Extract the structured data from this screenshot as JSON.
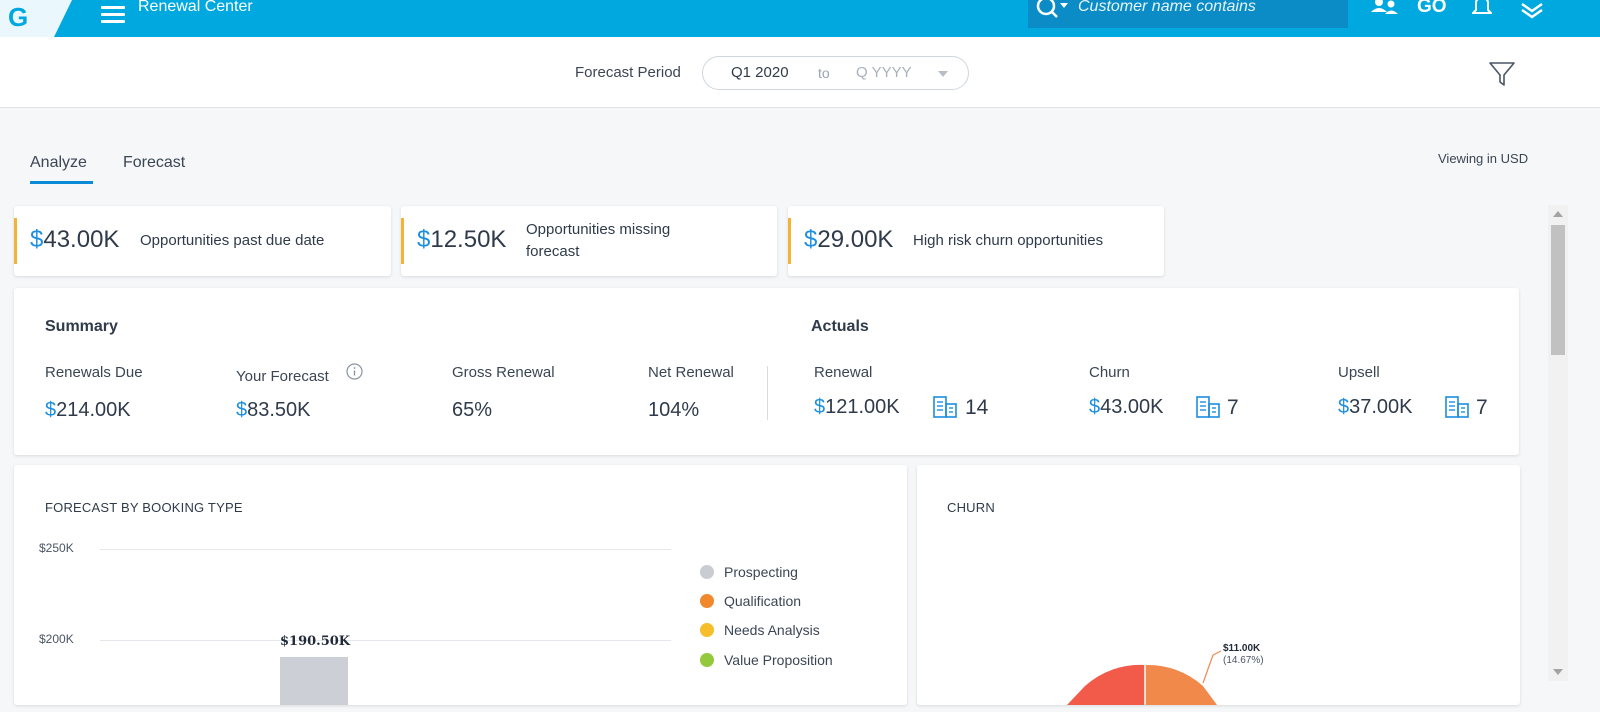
{
  "header": {
    "app_title": "Renewal Center",
    "logo_letter": "G",
    "search_placeholder": "Customer name contains",
    "go_label": "GO"
  },
  "period": {
    "label": "Forecast Period",
    "from": "Q1 2020",
    "to_word": "to",
    "until_placeholder": "Q YYYY"
  },
  "tabs": [
    {
      "label": "Analyze",
      "active": true
    },
    {
      "label": "Forecast",
      "active": false
    }
  ],
  "viewing_label": "Viewing in USD",
  "kpis": [
    {
      "currency": "$",
      "value": "43.00K",
      "desc": "Opportunities past due date"
    },
    {
      "currency": "$",
      "value": "12.50K",
      "desc": "Opportunities missing forecast"
    },
    {
      "currency": "$",
      "value": "29.00K",
      "desc": "High risk churn opportunities"
    }
  ],
  "summary": {
    "title": "Summary",
    "renewals_due": {
      "label": "Renewals Due",
      "currency": "$",
      "value": "214.00K"
    },
    "your_forecast": {
      "label": "Your Forecast",
      "currency": "$",
      "value": "83.50K"
    },
    "gross_renewal": {
      "label": "Gross Renewal",
      "value": "65%"
    },
    "net_renewal": {
      "label": "Net Renewal",
      "value": "104%"
    }
  },
  "actuals": {
    "title": "Actuals",
    "renewal": {
      "label": "Renewal",
      "currency": "$",
      "value": "121.00K",
      "count": "14"
    },
    "churn": {
      "label": "Churn",
      "currency": "$",
      "value": "43.00K",
      "count": "7"
    },
    "upsell": {
      "label": "Upsell",
      "currency": "$",
      "value": "37.00K",
      "count": "7"
    }
  },
  "forecast_chart": {
    "title": "FORECAST BY BOOKING TYPE",
    "legend": [
      {
        "name": "Prospecting",
        "color": "#c9ccd1"
      },
      {
        "name": "Qualification",
        "color": "#f0892e"
      },
      {
        "name": "Needs Analysis",
        "color": "#f5be2a"
      },
      {
        "name": "Value Proposition",
        "color": "#95c93d"
      }
    ]
  },
  "churn_chart": {
    "title": "CHURN",
    "slice_label_value": "$11.00K",
    "slice_label_percent": "(14.67%)"
  },
  "colors": {
    "topbar": "#00a8e0",
    "accent_blue": "#1c8ee0",
    "kpi_accent": "#f5b335",
    "churn_red": "#f25a4a",
    "churn_orange": "#f0894a"
  },
  "chart_data": [
    {
      "type": "bar",
      "title": "FORECAST BY BOOKING TYPE",
      "ylim": [
        0,
        250000
      ],
      "yticks": [
        "$250K",
        "$200K"
      ],
      "ytick_values": [
        250000,
        200000
      ],
      "series": [
        {
          "name": "Prospecting",
          "values": [
            190500
          ]
        }
      ],
      "data_labels": [
        "$190.50K"
      ],
      "legend": [
        "Prospecting",
        "Qualification",
        "Needs Analysis",
        "Value Proposition"
      ],
      "legend_position": "right",
      "grid": true
    },
    {
      "type": "pie",
      "title": "CHURN",
      "slices": [
        {
          "value": 11000,
          "percent": 14.67,
          "label": "$11.00K",
          "color": "#f0894a"
        }
      ]
    }
  ]
}
